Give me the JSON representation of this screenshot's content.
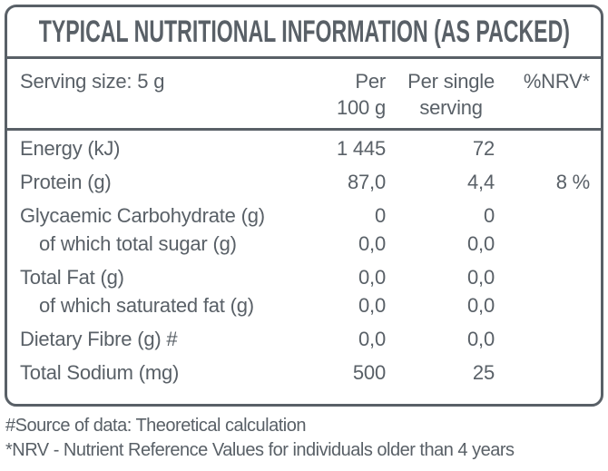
{
  "title": "TYPICAL NUTRITIONAL INFORMATION (AS PACKED)",
  "header": {
    "serving_size": "Serving size: 5 g",
    "per_100g_line1": "Per",
    "per_100g_line2": "100 g",
    "per_serving_line1": "Per single",
    "per_serving_line2": "serving",
    "nrv": "%NRV*"
  },
  "rows": [
    {
      "label": "Energy (kJ)",
      "per_100g": "1 445",
      "per_serving": "72",
      "nrv": "",
      "sub": false
    },
    {
      "label": "Protein (g)",
      "per_100g": "87,0",
      "per_serving": "4,4",
      "nrv": "8 %",
      "sub": false
    },
    {
      "label": "Glycaemic Carbohydrate (g)",
      "per_100g": "0",
      "per_serving": "0",
      "nrv": "",
      "sub": false
    },
    {
      "label": "of which total sugar (g)",
      "per_100g": "0,0",
      "per_serving": "0,0",
      "nrv": "",
      "sub": true
    },
    {
      "label": "Total Fat (g)",
      "per_100g": "0,0",
      "per_serving": "0,0",
      "nrv": "",
      "sub": false
    },
    {
      "label": "of which saturated fat (g)",
      "per_100g": "0,0",
      "per_serving": "0,0",
      "nrv": "",
      "sub": true
    },
    {
      "label": "Dietary Fibre (g) #",
      "per_100g": "0,0",
      "per_serving": "0,0",
      "nrv": "",
      "sub": false
    },
    {
      "label": "Total Sodium (mg)",
      "per_100g": "500",
      "per_serving": "25",
      "nrv": "",
      "sub": false
    }
  ],
  "footnotes": {
    "source": "#Source of data: Theoretical calculation",
    "nrv": "*NRV - Nutrient Reference Values for individuals older than 4 years"
  },
  "colors": {
    "text": "#596067",
    "border": "#596067",
    "background": "#ffffff"
  }
}
